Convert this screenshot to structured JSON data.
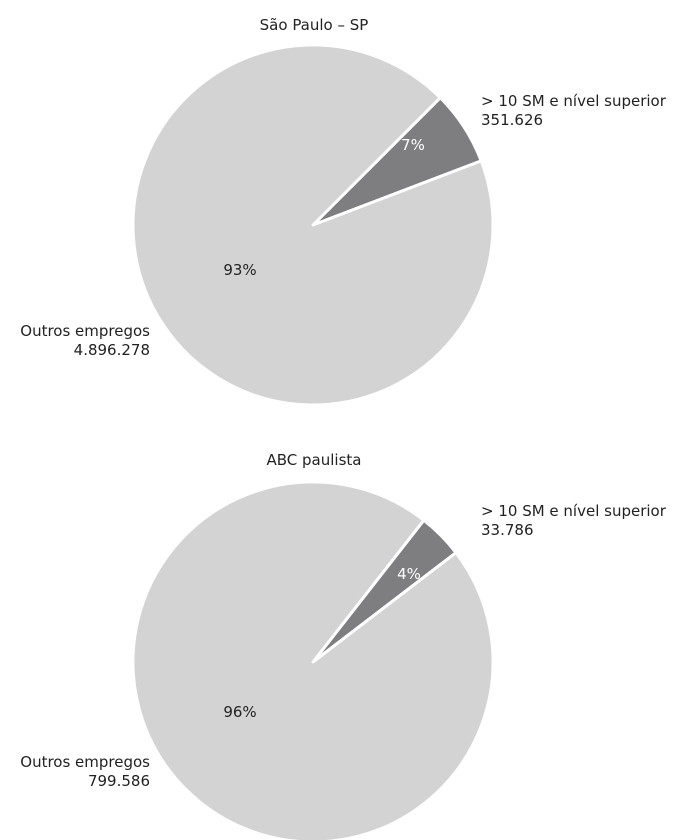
{
  "colors": {
    "large_slice": "#d3d3d3",
    "small_slice": "#7e7e80",
    "slice_border": "#ffffff"
  },
  "chart_data": [
    {
      "type": "pie",
      "title": "São Paulo – SP",
      "slices": [
        {
          "label": "> 10 SM e nível superior",
          "value_text": "351.626",
          "value": 351626,
          "percent_text": "7%",
          "percent": 7
        },
        {
          "label": "Outros empregos",
          "value_text": "4.896.278",
          "value": 4896278,
          "percent_text": "93%",
          "percent": 93
        }
      ]
    },
    {
      "type": "pie",
      "title": "ABC paulista",
      "slices": [
        {
          "label": "> 10 SM e nível superior",
          "value_text": "33.786",
          "value": 33786,
          "percent_text": "4%",
          "percent": 4
        },
        {
          "label": "Outros empregos",
          "value_text": "799.586",
          "value": 799586,
          "percent_text": "96%",
          "percent": 96
        }
      ]
    }
  ]
}
